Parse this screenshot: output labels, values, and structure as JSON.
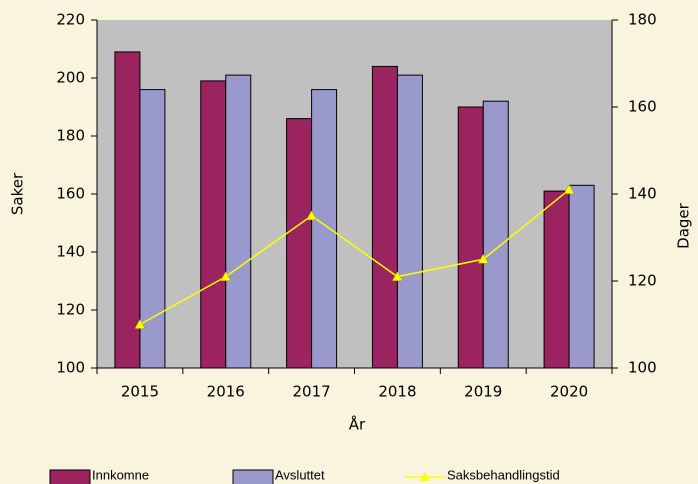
{
  "chart_data": {
    "type": "bar-line",
    "categories": [
      "2015",
      "2016",
      "2017",
      "2018",
      "2019",
      "2020"
    ],
    "series": [
      {
        "name": "Innkomne",
        "color": "#9b2360",
        "type": "bar",
        "values": [
          209,
          199,
          186,
          204,
          190,
          161
        ]
      },
      {
        "name": "Avsluttet",
        "color": "#9999cc",
        "type": "bar",
        "values": [
          196,
          201,
          196,
          201,
          192,
          163
        ]
      },
      {
        "name": "Saksbehandlingstid",
        "color": "#ffff00",
        "type": "line",
        "axis": "y2",
        "values": [
          110,
          121,
          135,
          121,
          125,
          141
        ]
      }
    ],
    "xlabel": "År",
    "ylabel": "Saker",
    "y2label": "Dager",
    "ylim": [
      100,
      220
    ],
    "yticks": [
      100,
      120,
      140,
      160,
      180,
      200,
      220
    ],
    "y2lim": [
      100,
      180
    ],
    "y2ticks": [
      100,
      120,
      140,
      160,
      180
    ],
    "legend": "bottom"
  }
}
